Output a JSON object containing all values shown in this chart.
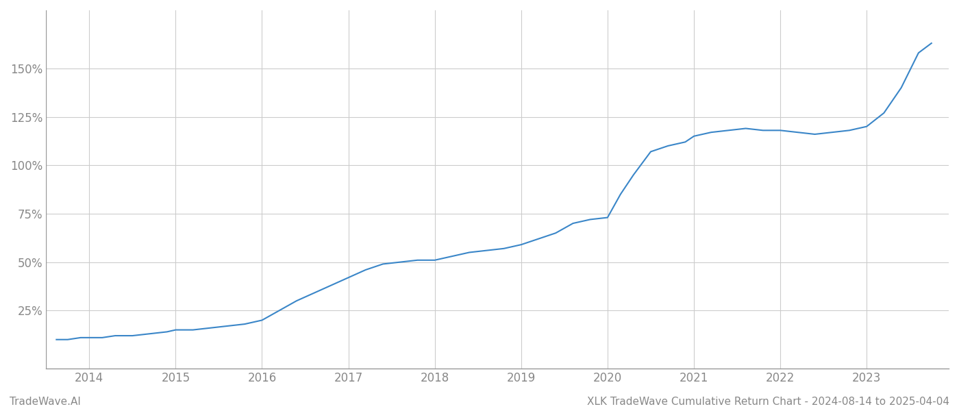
{
  "title_left": "TradeWave.AI",
  "title_right": "XLK TradeWave Cumulative Return Chart - 2024-08-14 to 2025-04-04",
  "line_color": "#3a86c8",
  "background_color": "#ffffff",
  "grid_color": "#cccccc",
  "x_years": [
    2014,
    2015,
    2016,
    2017,
    2018,
    2019,
    2020,
    2021,
    2022,
    2023
  ],
  "ylim": [
    -5,
    180
  ],
  "yticks": [
    25,
    50,
    75,
    100,
    125,
    150
  ],
  "x_data": [
    2013.62,
    2013.75,
    2013.9,
    2014.0,
    2014.15,
    2014.3,
    2014.5,
    2014.7,
    2014.9,
    2015.0,
    2015.2,
    2015.4,
    2015.6,
    2015.8,
    2016.0,
    2016.2,
    2016.4,
    2016.6,
    2016.8,
    2017.0,
    2017.2,
    2017.4,
    2017.6,
    2017.8,
    2018.0,
    2018.2,
    2018.4,
    2018.6,
    2018.8,
    2019.0,
    2019.2,
    2019.4,
    2019.6,
    2019.8,
    2020.0,
    2020.15,
    2020.3,
    2020.5,
    2020.7,
    2020.9,
    2021.0,
    2021.2,
    2021.4,
    2021.6,
    2021.8,
    2022.0,
    2022.2,
    2022.4,
    2022.6,
    2022.8,
    2023.0,
    2023.2,
    2023.4,
    2023.6,
    2023.75
  ],
  "y_data": [
    10,
    10,
    11,
    11,
    11,
    12,
    12,
    13,
    14,
    15,
    15,
    16,
    17,
    18,
    20,
    25,
    30,
    34,
    38,
    42,
    46,
    49,
    50,
    51,
    51,
    53,
    55,
    56,
    57,
    59,
    62,
    65,
    70,
    72,
    73,
    85,
    95,
    107,
    110,
    112,
    115,
    117,
    118,
    119,
    118,
    118,
    117,
    116,
    117,
    118,
    120,
    127,
    140,
    158,
    163
  ],
  "line_width": 1.5,
  "footer_fontsize": 11,
  "tick_label_color": "#888888",
  "spine_color": "#999999"
}
